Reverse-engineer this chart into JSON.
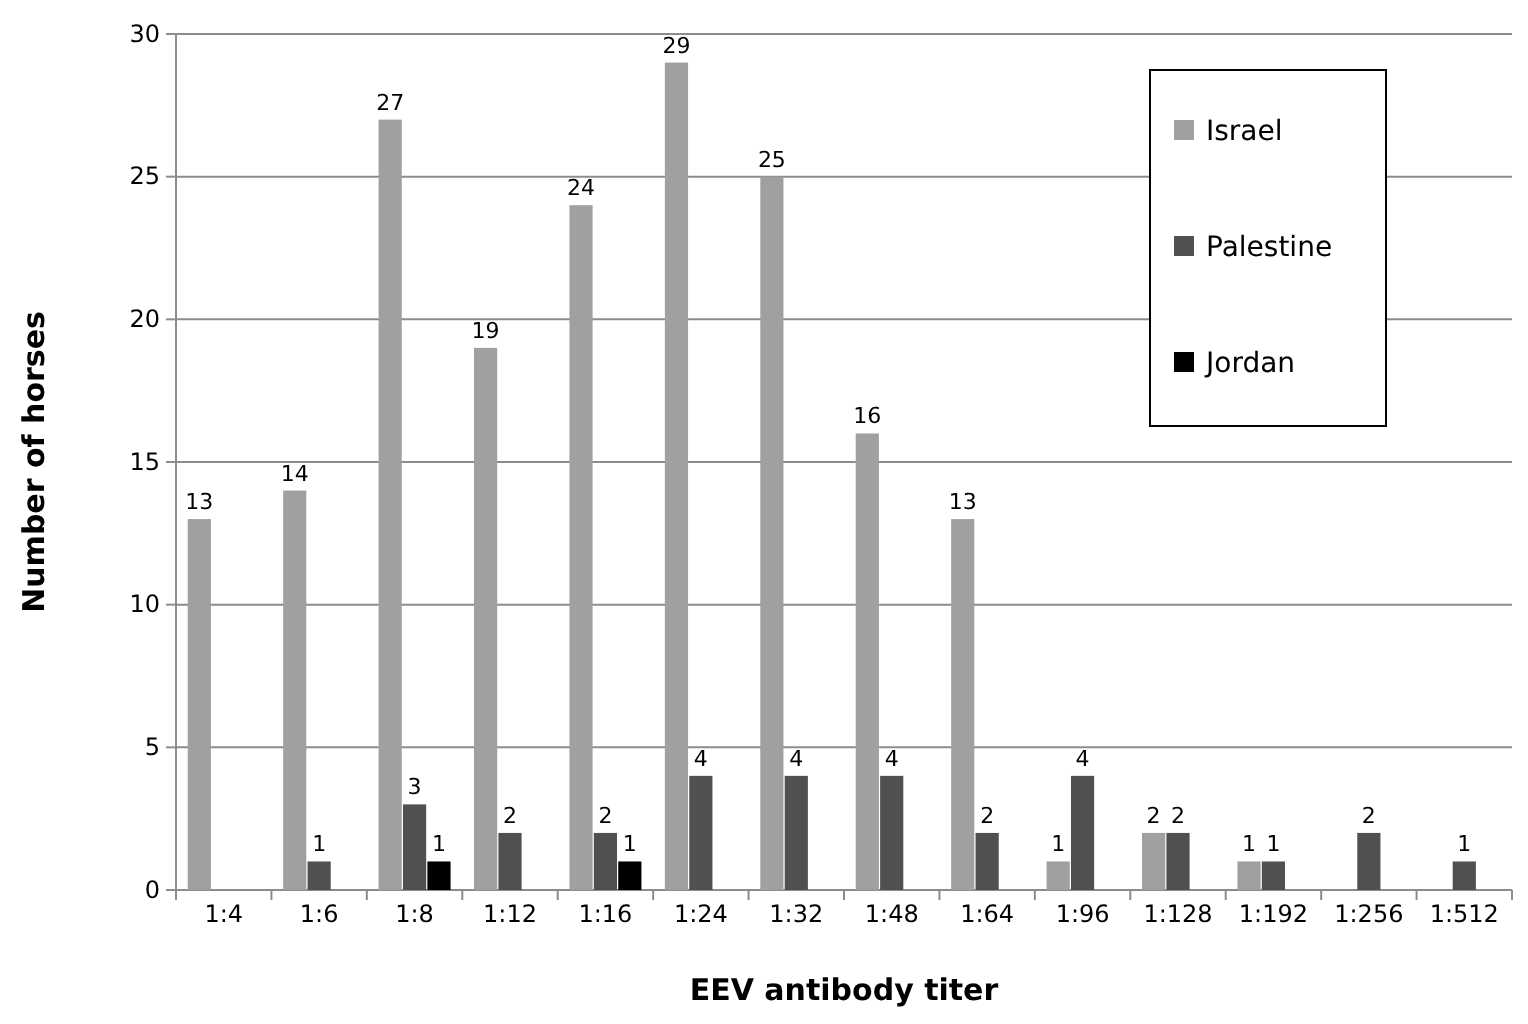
{
  "chart_data": {
    "type": "bar",
    "xlabel": "EEV antibody titer",
    "ylabel": "Number of horses",
    "categories": [
      "1:4",
      "1:6",
      "1:8",
      "1:12",
      "1:16",
      "1:24",
      "1:32",
      "1:48",
      "1:64",
      "1:96",
      "1:128",
      "1:192",
      "1:256",
      "1:512"
    ],
    "series": [
      {
        "name": "Israel",
        "color": "#a0a0a0",
        "values": [
          13,
          14,
          27,
          19,
          24,
          29,
          25,
          16,
          13,
          1,
          2,
          1,
          null,
          null
        ]
      },
      {
        "name": "Palestine",
        "color": "#505050",
        "values": [
          null,
          1,
          3,
          2,
          2,
          4,
          4,
          4,
          2,
          4,
          2,
          1,
          2,
          1
        ]
      },
      {
        "name": "Jordan",
        "color": "#000000",
        "values": [
          null,
          null,
          1,
          null,
          1,
          null,
          null,
          null,
          null,
          null,
          null,
          null,
          null,
          null
        ]
      }
    ],
    "ylim": [
      0,
      30
    ],
    "yticks": [
      0,
      5,
      10,
      15,
      20,
      25,
      30
    ],
    "grid": "y",
    "legend": "top right",
    "data_labels": true
  }
}
